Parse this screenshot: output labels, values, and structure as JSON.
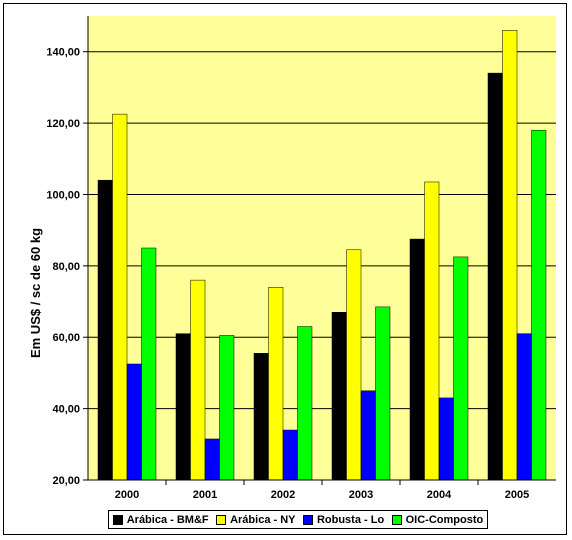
{
  "chart_data": {
    "type": "bar",
    "title": "",
    "xlabel": "",
    "ylabel": "Em US$ / sc de 60 kg",
    "categories": [
      "2000",
      "2001",
      "2002",
      "2003",
      "2004",
      "2005"
    ],
    "ylim": [
      20,
      150
    ],
    "yticks": [
      "20,00",
      "40,00",
      "60,00",
      "80,00",
      "100,00",
      "120,00",
      "140,00"
    ],
    "ytick_values": [
      20,
      40,
      60,
      80,
      100,
      120,
      140
    ],
    "grid": true,
    "plot_background": "#FFFF99",
    "legend_position": "bottom",
    "series": [
      {
        "name": "Arábica - BM&F",
        "color": "#000000",
        "values": [
          104,
          61,
          55.5,
          67,
          87.5,
          134
        ]
      },
      {
        "name": "Arábica - NY",
        "color": "#FFFF00",
        "values": [
          122.5,
          76,
          74,
          84.5,
          103.5,
          146
        ]
      },
      {
        "name": "Robusta - Lo",
        "color": "#0000FF",
        "values": [
          52.5,
          31.5,
          34,
          45,
          43,
          61
        ]
      },
      {
        "name": "OIC-Composto",
        "color": "#00FF00",
        "values": [
          85,
          60.5,
          63,
          68.5,
          82.5,
          118
        ]
      }
    ]
  }
}
